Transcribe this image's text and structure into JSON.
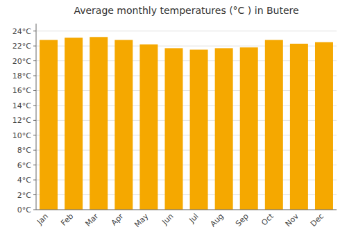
{
  "chart_data": {
    "type": "bar",
    "title": "Average monthly temperatures (°C ) in Butere",
    "categories": [
      "Jan",
      "Feb",
      "Mar",
      "Apr",
      "May",
      "Jun",
      "Jul",
      "Aug",
      "Sep",
      "Oct",
      "Nov",
      "Dec"
    ],
    "values": [
      22.8,
      23.1,
      23.2,
      22.8,
      22.2,
      21.7,
      21.5,
      21.7,
      21.8,
      22.8,
      22.3,
      22.5
    ],
    "color": "#F5A800",
    "ylim": [
      0,
      25
    ],
    "yticks": [
      {
        "value": 0,
        "label": "0°C"
      },
      {
        "value": 2,
        "label": "2°C"
      },
      {
        "value": 4,
        "label": "4°C"
      },
      {
        "value": 6,
        "label": "6°C"
      },
      {
        "value": 8,
        "label": "8°C"
      },
      {
        "value": 10,
        "label": "10°C"
      },
      {
        "value": 12,
        "label": "12°C"
      },
      {
        "value": 14,
        "label": "14°C"
      },
      {
        "value": 16,
        "label": "16°C"
      },
      {
        "value": 18,
        "label": "18°C"
      },
      {
        "value": 20,
        "label": "20°C"
      },
      {
        "value": 22,
        "label": "22°C"
      },
      {
        "value": 24,
        "label": "24°C"
      }
    ],
    "grid": true
  }
}
